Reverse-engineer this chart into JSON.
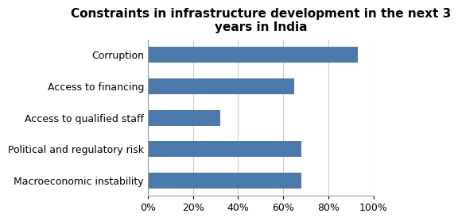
{
  "title": "Constraints in infrastructure development in the next 3\nyears in India",
  "categories": [
    "Macroeconomic instability",
    "Political and regulatory risk",
    "Access to qualified staff",
    "Access to financing",
    "Corruption"
  ],
  "values": [
    0.68,
    0.68,
    0.32,
    0.65,
    0.93
  ],
  "bar_color": "#4a7aab",
  "xlim": [
    0,
    1.0
  ],
  "xticks": [
    0,
    0.2,
    0.4,
    0.6,
    0.8,
    1.0
  ],
  "xticklabels": [
    "0%",
    "20%",
    "40%",
    "60%",
    "80%",
    "100%"
  ],
  "title_fontsize": 11,
  "tick_fontsize": 9,
  "ylabel_fontsize": 9,
  "background_color": "#ffffff",
  "grid_color": "#cccccc",
  "bar_height": 0.5
}
